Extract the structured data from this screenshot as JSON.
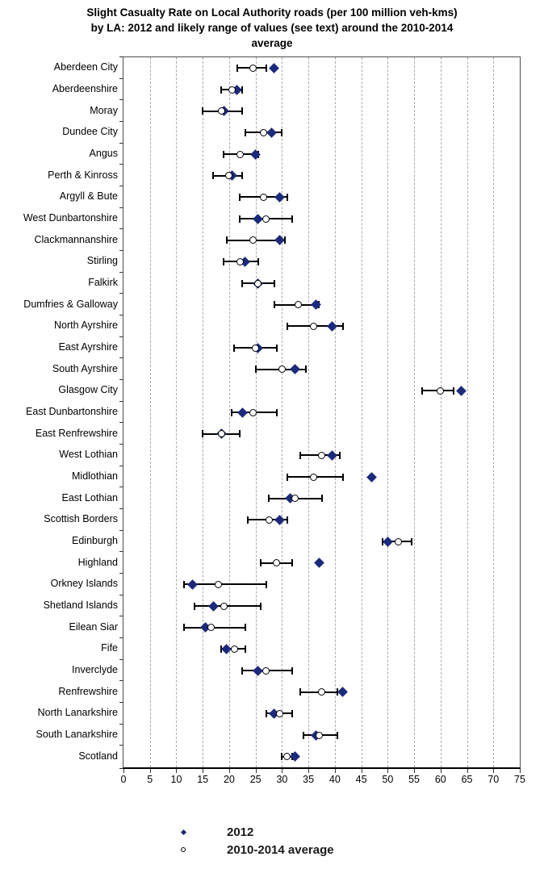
{
  "title_lines": [
    "Slight Casualty Rate on Local Authority roads (per 100 million veh-kms)",
    "by LA: 2012 and likely range of values (see text) around the 2010-2014",
    "average"
  ],
  "legend": {
    "items": [
      {
        "label": "2012",
        "marker": "filled-diamond"
      },
      {
        "label": "2010-2014 average",
        "marker": "open-circle"
      }
    ]
  },
  "colors": {
    "marker_2012": "#1b2a7b",
    "range_bar": "#000000",
    "average_circle_fill": "#ffffff",
    "average_circle_border": "#000000",
    "gridline": "#ababab",
    "axis": "#000000"
  },
  "chart_data": {
    "type": "scatter",
    "subtype": "horizontal-dot-plot-with-range-bars",
    "title": "Slight Casualty Rate on Local Authority roads (per 100 million veh-kms) by LA: 2012 and likely range of values (see text) around the 2010-2014 average",
    "xlabel": "",
    "ylabel": "",
    "xlim": [
      0,
      75
    ],
    "xticks": [
      0,
      5,
      10,
      15,
      20,
      25,
      30,
      35,
      40,
      45,
      50,
      55,
      60,
      65,
      70,
      75
    ],
    "grid": "vertical-dashed-every-5",
    "legend_position": "bottom",
    "categories": [
      "Aberdeen City",
      "Aberdeenshire",
      "Moray",
      "Dundee City",
      "Angus",
      "Perth & Kinross",
      "Argyll & Bute",
      "West Dunbartonshire",
      "Clackmannanshire",
      "Stirling",
      "Falkirk",
      "Dumfries & Galloway",
      "North Ayrshire",
      "East Ayrshire",
      "South Ayrshire",
      "Glasgow City",
      "East Dunbartonshire",
      "East Renfrewshire",
      "West Lothian",
      "Midlothian",
      "East Lothian",
      "Scottish Borders",
      "Edinburgh",
      "Highland",
      "Orkney Islands",
      "Shetland Islands",
      "Eilean Siar",
      "Fife",
      "Inverclyde",
      "Renfrewshire",
      "North Lanarkshire",
      "South Lanarkshire",
      "Scotland"
    ],
    "series": [
      {
        "name": "2012",
        "marker": "filled-diamond",
        "color": "#1b2a7b",
        "values": [
          28.5,
          21.5,
          19,
          28,
          25,
          20.5,
          29.5,
          25.5,
          29.5,
          23,
          25.5,
          36.5,
          39.5,
          25.5,
          32.5,
          64,
          22.5,
          18.5,
          39.5,
          47,
          31.5,
          29.5,
          50,
          37,
          13,
          17,
          15.5,
          19.5,
          25.5,
          41.5,
          28.5,
          36.5,
          32.5
        ]
      },
      {
        "name": "2010-2014 average",
        "marker": "open-circle",
        "color": "#ffffff",
        "values": [
          24.5,
          20.5,
          18.5,
          26.5,
          22,
          20,
          26.5,
          27,
          24.5,
          22,
          25.5,
          33,
          36,
          25,
          30,
          60,
          24.5,
          18.5,
          37.5,
          36,
          32.5,
          27.5,
          52,
          29,
          18,
          19,
          16.5,
          21,
          27,
          37.5,
          29.5,
          37,
          31
        ]
      },
      {
        "name": "likely range low",
        "marker": "range-cap",
        "values": [
          21.5,
          18.5,
          15,
          23,
          19,
          17,
          22,
          22,
          19.5,
          19,
          22.5,
          28.5,
          31,
          21,
          25,
          56.5,
          20.5,
          15,
          33.5,
          31,
          27.5,
          23.5,
          49,
          26,
          11.5,
          13.5,
          11.5,
          18.5,
          22.5,
          33.5,
          27,
          34,
          30
        ]
      },
      {
        "name": "likely range high",
        "marker": "range-cap",
        "values": [
          27,
          22.5,
          22.5,
          30,
          25.5,
          22.5,
          31,
          32,
          30.5,
          25.5,
          28.5,
          37,
          41.5,
          29,
          34.5,
          62.5,
          29,
          22,
          41,
          41.5,
          37.5,
          31,
          54.5,
          32,
          27,
          26,
          23,
          23,
          32,
          40.5,
          32,
          40.5,
          32
        ]
      }
    ]
  }
}
